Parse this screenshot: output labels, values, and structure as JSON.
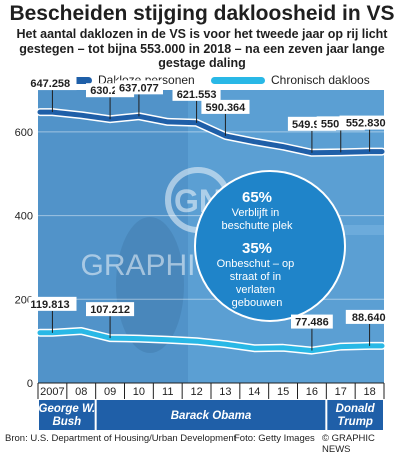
{
  "title": "Bescheiden stijging dakloosheid in VS",
  "subtitle": "Het aantal daklozen in de VS is voor het tweede jaar op rij licht gestegen – tot bijna 553.000 in 2018 – na een zeven jaar lange gestage daling",
  "legend": [
    {
      "label": "Dakloze personen",
      "color": "#1f5fa8"
    },
    {
      "label": "Chronisch dakloos",
      "color": "#29b8e6"
    }
  ],
  "colors": {
    "homeless": "#1f5fa8",
    "chronic": "#29b8e6",
    "panel": "#5b9fd3",
    "circle": "#1f84c9",
    "bar": "#1f5fa8"
  },
  "callout": {
    "pct1": "65%",
    "text1": "Verblijft in beschutte plek",
    "pct2": "35%",
    "text2": "Onbeschut – op straat of in verlaten gebouwen"
  },
  "presidents": [
    {
      "name": "George W. Bush",
      "from": 2007,
      "to": 2008
    },
    {
      "name": "Barack Obama",
      "from": 2009,
      "to": 2016
    },
    {
      "name": "Donald Trump",
      "from": 2017,
      "to": 2018
    }
  ],
  "watermark": {
    "logo": "GN",
    "text": "GRAPHIC NEWS"
  },
  "source": "Bron: U.S. Department of Housing/Urban Development",
  "photo": "Foto: Getty Images",
  "credit": "© GRAPHIC NEWS",
  "chart_data": {
    "type": "line",
    "x": [
      2007,
      2008,
      2009,
      2010,
      2011,
      2012,
      2013,
      2014,
      2015,
      2016,
      2017,
      2018
    ],
    "x_tick_labels": [
      "2007",
      "08",
      "09",
      "10",
      "11",
      "12",
      "13",
      "14",
      "15",
      "16",
      "17",
      "18"
    ],
    "ylim": [
      0,
      700
    ],
    "yticks": [
      0,
      200,
      400,
      600
    ],
    "series": [
      {
        "name": "Dakloze personen",
        "color": "#1f5fa8",
        "values": [
          647258,
          639784,
          630227,
          637077,
          623788,
          621553,
          590364,
          576450,
          564708,
          549928,
          550996,
          552830
        ]
      },
      {
        "name": "Chronisch dakloos",
        "color": "#29b8e6",
        "values": [
          119813,
          124135,
          107212,
          106062,
          103522,
          99894,
          92593,
          83170,
          83989,
          77486,
          86962,
          88640
        ]
      }
    ],
    "data_labels": [
      {
        "series": 0,
        "x": 2007,
        "text": "647.258"
      },
      {
        "series": 0,
        "x": 2009,
        "text": "630.227"
      },
      {
        "series": 0,
        "x": 2010,
        "text": "637.077"
      },
      {
        "series": 0,
        "x": 2012,
        "text": "621.553"
      },
      {
        "series": 0,
        "x": 2013,
        "text": "590.364"
      },
      {
        "series": 0,
        "x": 2016,
        "text": "549.928"
      },
      {
        "series": 0,
        "x": 2017,
        "text": "550.996"
      },
      {
        "series": 0,
        "x": 2018,
        "text": "552.830"
      },
      {
        "series": 1,
        "x": 2007,
        "text": "119.813"
      },
      {
        "series": 1,
        "x": 2009,
        "text": "107.212"
      },
      {
        "series": 1,
        "x": 2016,
        "text": "77.486"
      },
      {
        "series": 1,
        "x": 2018,
        "text": "88.640"
      }
    ]
  }
}
